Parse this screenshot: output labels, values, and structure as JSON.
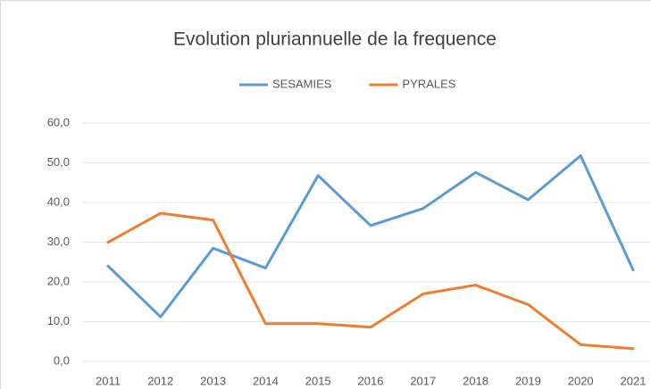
{
  "chart_data": {
    "type": "line",
    "title": "Evolution pluriannuelle de la frequence",
    "categories": [
      "2011",
      "2012",
      "2013",
      "2014",
      "2015",
      "2016",
      "2017",
      "2018",
      "2019",
      "2020",
      "2021"
    ],
    "series": [
      {
        "name": "SESAMIES",
        "color": "#5b9bd5",
        "values": [
          24,
          11.2,
          28.5,
          23.5,
          46.8,
          34.2,
          38.5,
          47.6,
          40.7,
          51.8,
          23
        ]
      },
      {
        "name": "PYRALES",
        "color": "#ed7d31",
        "values": [
          30,
          37.3,
          35.6,
          9.5,
          9.5,
          8.6,
          17,
          19.2,
          14.3,
          4.2,
          3.2
        ]
      }
    ],
    "ylim": [
      0,
      60
    ],
    "yticks": [
      {
        "value": 0,
        "label": "0,0"
      },
      {
        "value": 10,
        "label": "10,0"
      },
      {
        "value": 20,
        "label": "20,0"
      },
      {
        "value": 30,
        "label": "30,0"
      },
      {
        "value": 40,
        "label": "40,0"
      },
      {
        "value": 50,
        "label": "50,0"
      },
      {
        "value": 60,
        "label": "60,0"
      }
    ],
    "grid": true,
    "legend": "top"
  }
}
